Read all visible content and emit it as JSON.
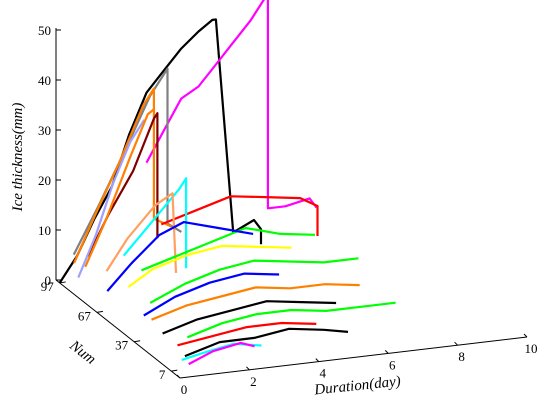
{
  "chart_data": {
    "type": "line",
    "subtype": "3d-waterfall",
    "title": "",
    "xlabel": "Duration(day)",
    "ylabel": "Num",
    "zlabel": "Ice thickness(mm)",
    "xlim": [
      0,
      10
    ],
    "ylim": [
      0,
      100
    ],
    "zlim": [
      0,
      50
    ],
    "xticks": [
      "0",
      "2",
      "4",
      "6",
      "8",
      "10"
    ],
    "yticks": [
      "7",
      "37",
      "67",
      "97"
    ],
    "zticks": [
      "0",
      "10",
      "20",
      "30",
      "40",
      "50"
    ],
    "grid": false,
    "legend": "none",
    "series": [
      {
        "color": "#000000",
        "num": 97,
        "x": [
          0,
          0.5,
          1,
          1.5,
          2,
          2.5,
          3,
          3.5,
          4,
          4.4,
          4.5,
          5.0,
          5.6,
          5.8,
          5.8
        ],
        "y": [
          0,
          5,
          12,
          18,
          28,
          36,
          40,
          44,
          47,
          49,
          49,
          6,
          8,
          6,
          3
        ]
      },
      {
        "color": "#ff00ff",
        "num": 97,
        "x": [
          2.5,
          3,
          3.5,
          4,
          4.5,
          5,
          5.5,
          5.9,
          6.0,
          6.0,
          6.5,
          7.2,
          7.4
        ],
        "y": [
          22,
          28,
          34,
          36,
          40,
          44,
          48,
          52,
          52,
          10,
          10,
          11,
          9
        ]
      },
      {
        "color": "#808080",
        "num": 94,
        "x": [
          0.3,
          1,
          1.8,
          2.5,
          3.0,
          3.0,
          3.4
        ],
        "y": [
          6,
          15,
          26,
          36,
          41,
          10,
          8
        ]
      },
      {
        "color": "#ff8000",
        "num": 91,
        "x": [
          0.2,
          0.8,
          1.5,
          2.2,
          2.5,
          2.5,
          3.0
        ],
        "y": [
          5,
          14,
          24,
          35,
          38,
          12,
          10
        ]
      },
      {
        "color": "#800000",
        "num": 91,
        "x": [
          0.6,
          1.2,
          1.9,
          2.5,
          2.6,
          2.6
        ],
        "y": [
          6,
          14,
          22,
          32,
          33,
          8
        ]
      },
      {
        "color": "#ff0000",
        "num": 85,
        "x": [
          2.5,
          3.5,
          4.5,
          5.5,
          6.5,
          7.0,
          7.0
        ],
        "y": [
          12,
          14,
          16,
          15,
          14,
          12,
          6
        ]
      },
      {
        "color": "#a0a0ff",
        "num": 82,
        "x": [
          0,
          0.5,
          1,
          1.5,
          1.9
        ],
        "y": [
          4,
          12,
          22,
          30,
          34
        ]
      },
      {
        "color": "#ff8000",
        "num": 82,
        "x": [
          0.2,
          0.8,
          1.5,
          2.0,
          2.2
        ],
        "y": [
          6,
          15,
          27,
          35,
          36
        ]
      },
      {
        "color": "#00ffff",
        "num": 79,
        "x": [
          1.2,
          2.0,
          2.8,
          3.0,
          3.0
        ],
        "y": [
          8,
          14,
          20,
          22,
          4
        ]
      },
      {
        "color": "#ffa060",
        "num": 76,
        "x": [
          0.6,
          1.2,
          2.0,
          2.5,
          2.6
        ],
        "y": [
          6,
          12,
          18,
          20,
          4
        ]
      },
      {
        "color": "#00ff00",
        "num": 73,
        "x": [
          1.5,
          2.5,
          3.5,
          4.5,
          5.5,
          6.5
        ],
        "y": [
          6,
          8,
          10,
          12,
          10,
          9
        ]
      },
      {
        "color": "#0000ff",
        "num": 67,
        "x": [
          0.3,
          1.0,
          1.8,
          2.5,
          3.5,
          4.5
        ],
        "y": [
          4,
          9,
          14,
          16,
          14,
          12
        ]
      },
      {
        "color": "#ffff00",
        "num": 64,
        "x": [
          0.8,
          1.5,
          2.5,
          3.5,
          4.5,
          5.5
        ],
        "y": [
          5,
          8,
          10,
          11,
          10,
          9
        ]
      },
      {
        "color": "#00ff00",
        "num": 52,
        "x": [
          1.0,
          2.0,
          3.0,
          4.0,
          5.0,
          6.0,
          7.0
        ],
        "y": [
          4,
          7,
          9,
          10,
          9,
          8,
          8
        ]
      },
      {
        "color": "#0000ff",
        "num": 46,
        "x": [
          0.6,
          1.5,
          2.5,
          3.5,
          4.5
        ],
        "y": [
          3,
          6,
          8,
          9,
          8
        ]
      },
      {
        "color": "#ff8000",
        "num": 37,
        "x": [
          0.5,
          1.5,
          2.5,
          3.5,
          4.5,
          5.5,
          6.5
        ],
        "y": [
          4,
          6,
          7,
          8,
          7,
          7,
          6
        ]
      },
      {
        "color": "#000000",
        "num": 28,
        "x": [
          0.5,
          1.5,
          2.5,
          3.5,
          4.5,
          5.5
        ],
        "y": [
          3,
          5,
          6,
          7,
          6,
          5
        ]
      },
      {
        "color": "#00ff00",
        "num": 22,
        "x": [
          1.0,
          2.0,
          3.0,
          4.0,
          5.0,
          6.0,
          7.0
        ],
        "y": [
          3,
          5,
          6,
          6,
          5,
          5,
          5
        ]
      },
      {
        "color": "#ff0000",
        "num": 16,
        "x": [
          0.5,
          1.5,
          2.5,
          3.5,
          4.5
        ],
        "y": [
          3,
          4,
          5,
          5,
          4
        ]
      },
      {
        "color": "#000000",
        "num": 10,
        "x": [
          0.5,
          1.5,
          2.5,
          3.5,
          4.5,
          5.2
        ],
        "y": [
          2,
          4,
          4,
          5,
          4,
          3
        ]
      },
      {
        "color": "#00ffff",
        "num": 7,
        "x": [
          0.3,
          1.0,
          1.8,
          2.6
        ],
        "y": [
          2,
          3,
          4,
          3
        ]
      },
      {
        "color": "#ff00ff",
        "num": 7,
        "x": [
          0.5,
          1.2,
          2.0,
          2.4
        ],
        "y": [
          1,
          3,
          4,
          3
        ]
      }
    ]
  }
}
